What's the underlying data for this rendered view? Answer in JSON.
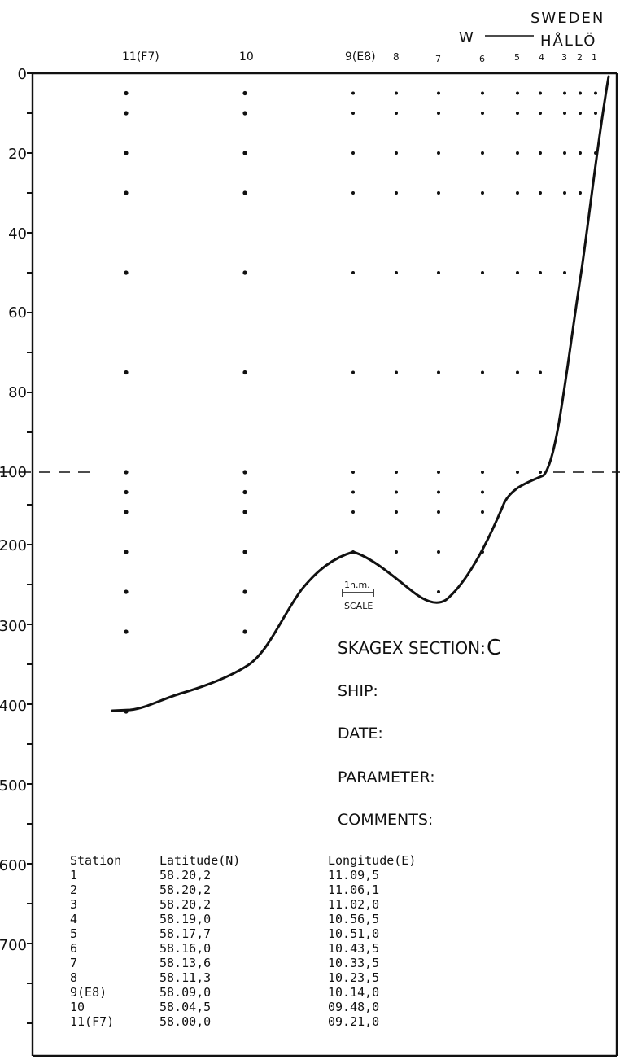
{
  "header": {
    "country": "SWEDEN",
    "direction": "W",
    "place": "HÅLLÖ"
  },
  "stations": [
    {
      "label": "11(F7)",
      "depths": [
        5,
        10,
        20,
        30,
        50,
        75,
        100,
        125,
        150,
        200,
        250,
        300,
        400
      ]
    },
    {
      "label": "10",
      "depths": [
        5,
        10,
        20,
        30,
        50,
        75,
        100,
        125,
        150,
        200,
        250,
        300
      ]
    },
    {
      "label": "9(E8)",
      "depths": [
        5,
        10,
        20,
        30,
        50,
        75,
        100,
        125,
        150,
        200
      ]
    },
    {
      "label": "8",
      "depths": [
        5,
        10,
        20,
        30,
        50,
        75,
        100,
        125,
        150,
        200
      ]
    },
    {
      "label": "7",
      "depths": [
        5,
        10,
        20,
        30,
        50,
        75,
        100,
        125,
        150,
        200,
        250
      ]
    },
    {
      "label": "6",
      "depths": [
        5,
        10,
        20,
        30,
        50,
        75,
        100,
        125,
        150,
        200
      ]
    },
    {
      "label": "5",
      "depths": [
        5,
        10,
        20,
        30,
        50,
        75,
        100
      ]
    },
    {
      "label": "4",
      "depths": [
        5,
        10,
        20,
        30,
        50,
        75,
        100
      ]
    },
    {
      "label": "3",
      "depths": [
        5,
        10,
        20,
        30,
        50
      ]
    },
    {
      "label": "2",
      "depths": [
        5,
        10,
        20,
        30
      ]
    },
    {
      "label": "1",
      "depths": [
        5,
        10,
        20
      ]
    }
  ],
  "depth_axis": {
    "ticks": [
      "0",
      "20",
      "40",
      "60",
      "80",
      "100",
      "200",
      "300",
      "400",
      "500",
      "600",
      "700"
    ]
  },
  "scale_bar": {
    "distance": "1n.m.",
    "label": "SCALE"
  },
  "info": {
    "section_label": "SKAGEX SECTION:",
    "section_value": "C",
    "ship": "SHIP:",
    "date": "DATE:",
    "parameter": "PARAMETER:",
    "comments": "COMMENTS:"
  },
  "table": {
    "headers": [
      "Station",
      "Latitude(N)",
      "Longitude(E)"
    ],
    "rows": [
      [
        "1",
        "58.20,2",
        "11.09,5"
      ],
      [
        "2",
        "58.20,2",
        "11.06,1"
      ],
      [
        "3",
        "58.20,2",
        "11.02,0"
      ],
      [
        "4",
        "58.19,0",
        "10.56,5"
      ],
      [
        "5",
        "58.17,7",
        "10.51,0"
      ],
      [
        "6",
        "58.16,0",
        "10.43,5"
      ],
      [
        "7",
        "58.13,6",
        "10.33,5"
      ],
      [
        "8",
        "58.11,3",
        "10.23,5"
      ],
      [
        "9(E8)",
        "58.09,0",
        "10.14,0"
      ],
      [
        "10",
        "58.04,5",
        "09.48,0"
      ],
      [
        "11(F7)",
        "58.00,0",
        "09.21,0"
      ]
    ]
  }
}
